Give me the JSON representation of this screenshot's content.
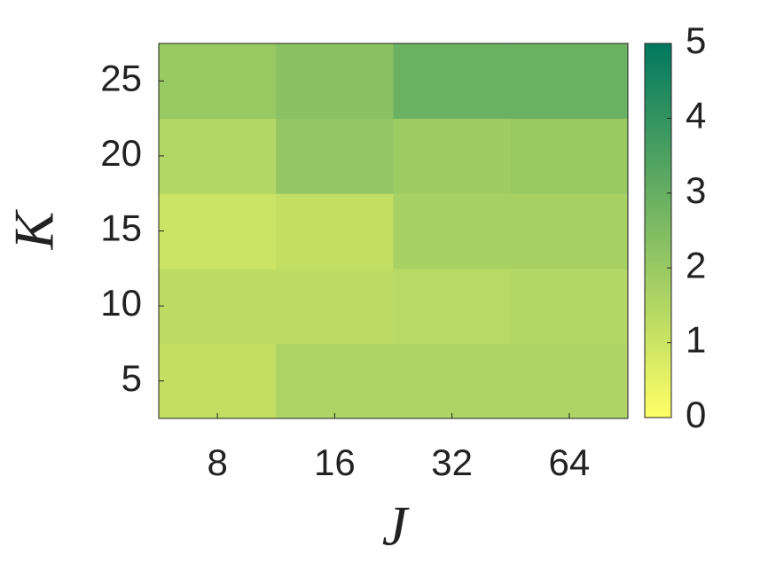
{
  "chart_data": {
    "type": "heatmap",
    "x_label": "J",
    "y_label": "K",
    "x_categories": [
      "8",
      "16",
      "32",
      "64"
    ],
    "y_categories": [
      "5",
      "10",
      "15",
      "20",
      "25"
    ],
    "values": [
      [
        1.2,
        1.6,
        1.6,
        1.6
      ],
      [
        1.3,
        1.3,
        1.4,
        1.5
      ],
      [
        1.0,
        1.2,
        1.7,
        1.7
      ],
      [
        1.5,
        2.1,
        1.9,
        2.0
      ],
      [
        2.0,
        2.3,
        2.9,
        2.9
      ]
    ],
    "colormap": [
      "#ffff66",
      "#00785f"
    ],
    "clim": [
      0,
      5
    ],
    "cticks": [
      0,
      1,
      2,
      3,
      4,
      5
    ]
  }
}
